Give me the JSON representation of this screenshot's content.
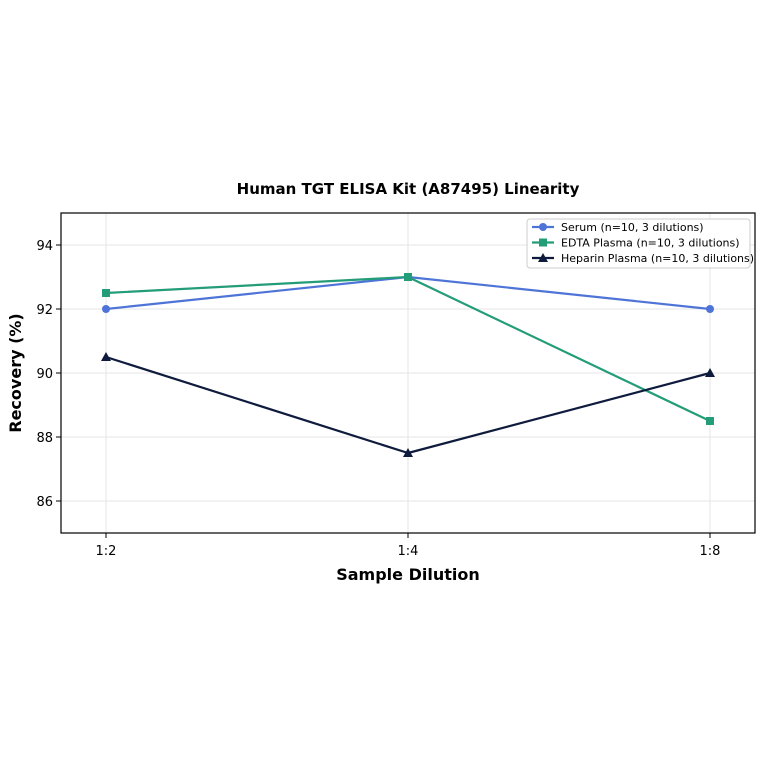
{
  "chart_data": {
    "type": "line",
    "title": "Human TGT ELISA Kit (A87495) Linearity",
    "xlabel": "Sample Dilution",
    "ylabel": "Recovery (%)",
    "categories": [
      "1:2",
      "1:4",
      "1:8"
    ],
    "ylim": [
      85,
      95
    ],
    "yticks": [
      86,
      88,
      90,
      92,
      94
    ],
    "grid": true,
    "legend_position": "top-right",
    "series": [
      {
        "name": "Serum (n=10, 3 dilutions)",
        "values": [
          92.0,
          93.0,
          92.0
        ],
        "color": "#4f74d8",
        "marker": "circle"
      },
      {
        "name": "EDTA Plasma (n=10, 3 dilutions)",
        "values": [
          92.5,
          93.0,
          88.5
        ],
        "color": "#239c78",
        "marker": "square"
      },
      {
        "name": "Heparin Plasma (n=10, 3 dilutions)",
        "values": [
          90.5,
          87.5,
          90.0
        ],
        "color": "#0f1b3d",
        "marker": "triangle"
      }
    ]
  }
}
